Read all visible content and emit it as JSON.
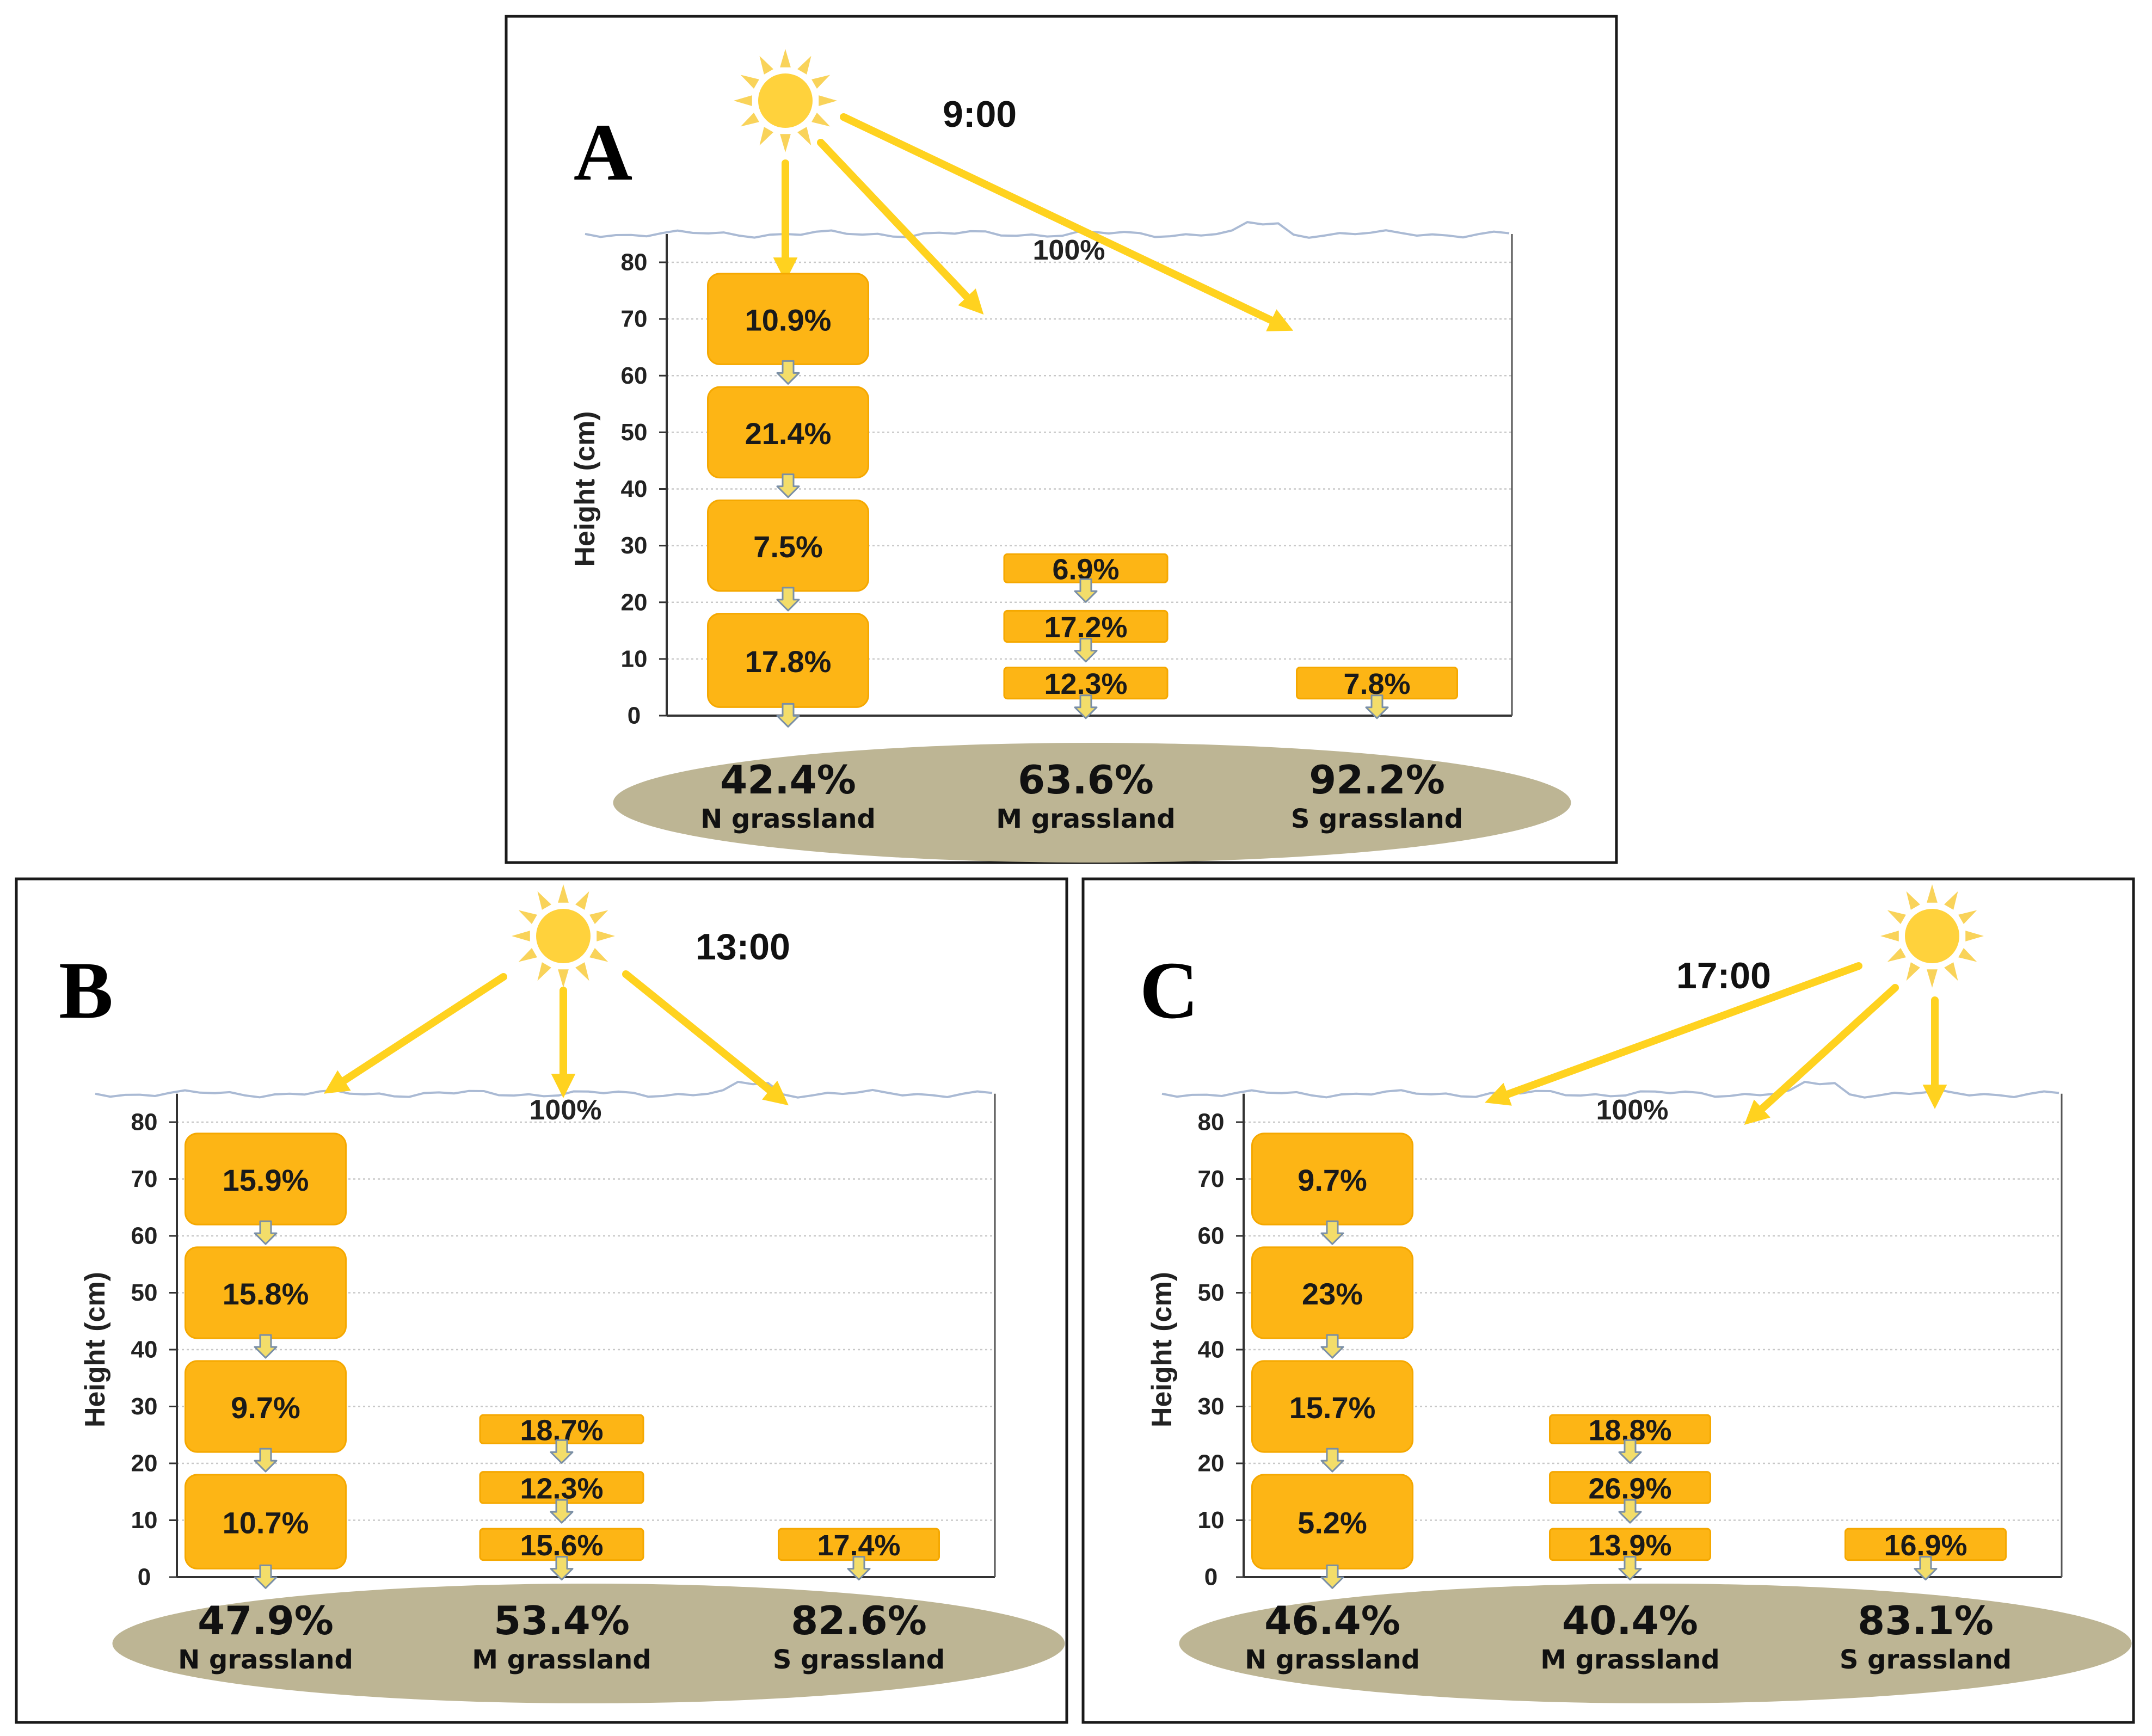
{
  "figure": {
    "y_axis_label": "Height (cm)",
    "y_ticks": [
      "0",
      "10",
      "20",
      "30",
      "40",
      "50",
      "60",
      "70",
      "80"
    ],
    "incident_light_label": "100%",
    "colors": {
      "box_fill": "#FDB515",
      "box_stroke": "#F5A800",
      "sunbeam": "#FFD21F",
      "sun": "#FFD23C",
      "ground": "#BDB594",
      "canopy_line": "#AABAD4",
      "gridline": "#C8C8C8",
      "down_arrow_fill": "#F3DD6A",
      "down_arrow_stroke": "#7A8FA6"
    }
  },
  "panels": [
    {
      "letter": "A",
      "time": "9:00",
      "grasslands": [
        {
          "name": "N grassland",
          "ground_pct": "42.4%",
          "layers": [
            "10.9%",
            "21.4%",
            "7.5%",
            "17.8%"
          ]
        },
        {
          "name": "M grassland",
          "ground_pct": "63.6%",
          "layers": [
            "6.9%",
            "17.2%",
            "12.3%"
          ]
        },
        {
          "name": "S grassland",
          "ground_pct": "92.2%",
          "layers": [
            "7.8%"
          ]
        }
      ]
    },
    {
      "letter": "B",
      "time": "13:00",
      "grasslands": [
        {
          "name": "N grassland",
          "ground_pct": "47.9%",
          "layers": [
            "15.9%",
            "15.8%",
            "9.7%",
            "10.7%"
          ]
        },
        {
          "name": "M grassland",
          "ground_pct": "53.4%",
          "layers": [
            "18.7%",
            "12.3%",
            "15.6%"
          ]
        },
        {
          "name": "S grassland",
          "ground_pct": "82.6%",
          "layers": [
            "17.4%"
          ]
        }
      ]
    },
    {
      "letter": "C",
      "time": "17:00",
      "grasslands": [
        {
          "name": "N grassland",
          "ground_pct": "46.4%",
          "layers": [
            "9.7%",
            "23%",
            "15.7%",
            "5.2%"
          ]
        },
        {
          "name": "M grassland",
          "ground_pct": "40.4%",
          "layers": [
            "18.8%",
            "26.9%",
            "13.9%"
          ]
        },
        {
          "name": "S grassland",
          "ground_pct": "83.1%",
          "layers": [
            "16.9%"
          ]
        }
      ]
    }
  ]
}
